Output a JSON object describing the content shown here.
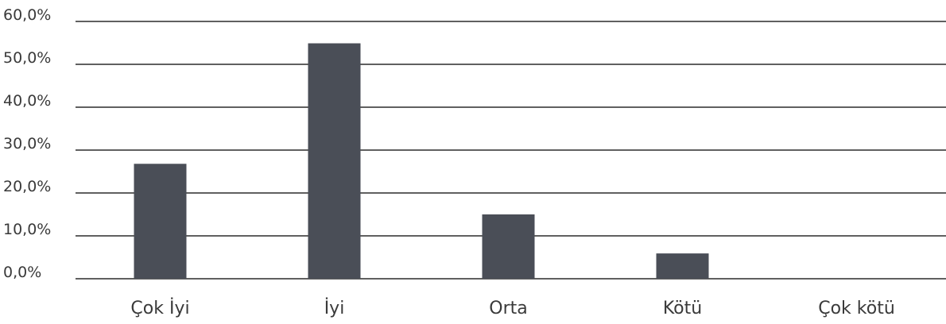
{
  "chart_data": {
    "type": "bar",
    "categories": [
      "Çok İyi",
      "İyi",
      "Orta",
      "Kötü",
      "Çok kötü"
    ],
    "values": [
      26.8,
      54.9,
      15.0,
      5.9,
      0.0
    ],
    "title": "",
    "xlabel": "",
    "ylabel": "",
    "ylim": [
      0,
      60
    ],
    "yticks": [
      "0,0%",
      "10,0%",
      "20,0%",
      "30,0%",
      "40,0%",
      "50,0%",
      "60,0%"
    ],
    "grid": true,
    "legend": "none",
    "colors": {
      "bar": "#4a4e57",
      "grid": "#2b2b2b",
      "text": "#3a3a3a"
    }
  }
}
